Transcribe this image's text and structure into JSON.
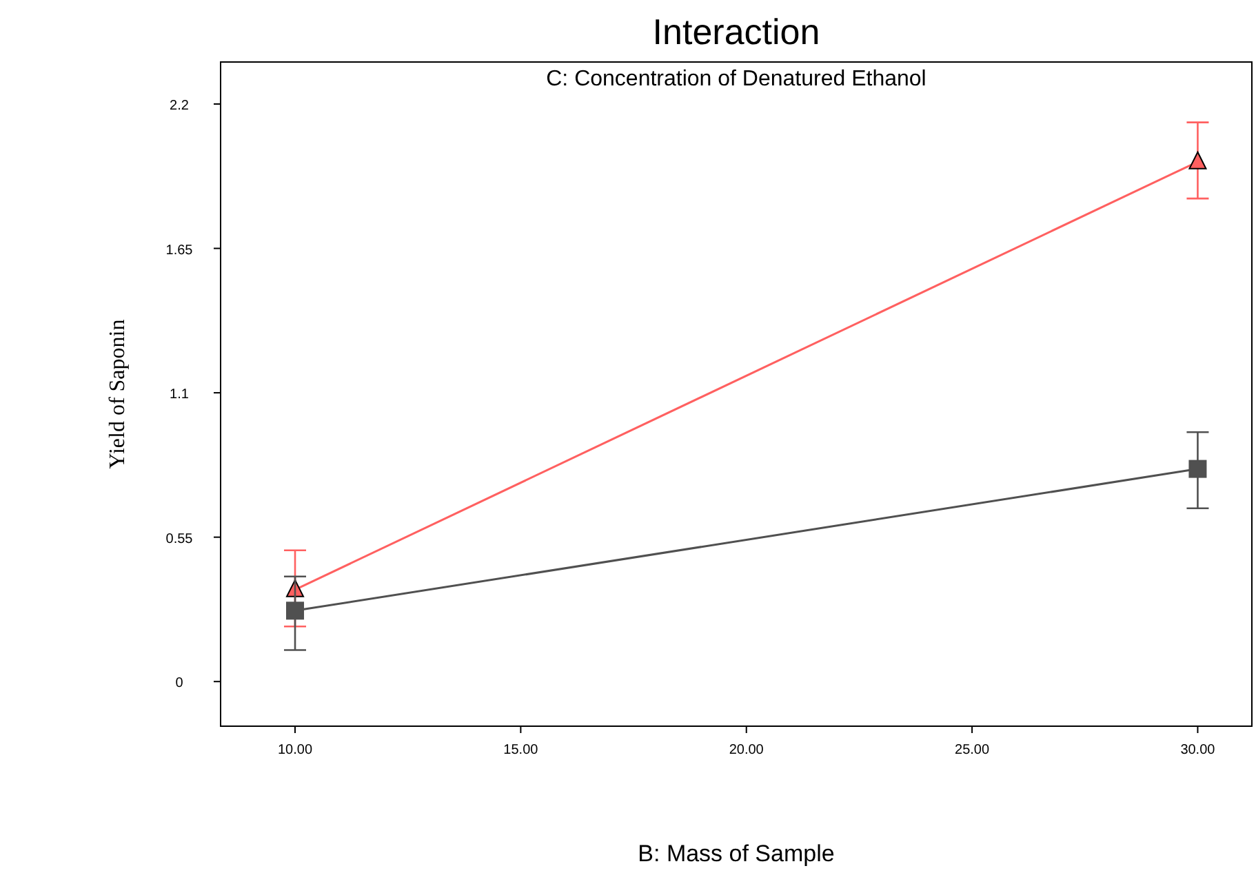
{
  "chart_data": {
    "type": "line",
    "title": "Interaction",
    "subtitle": "C: Concentration of Denatured Ethanol",
    "xlabel": "B: Mass of Sample",
    "ylabel": "Yield of Saponin",
    "x": [
      10,
      30
    ],
    "series": [
      {
        "color": "#ff6060",
        "values": [
          0.35,
          1.98
        ],
        "errors": [
          [
            0.21,
            0.5
          ],
          [
            1.84,
            2.13
          ]
        ],
        "marker": "triangle"
      },
      {
        "color": "#505050",
        "values": [
          0.27,
          0.81
        ],
        "errors": [
          [
            0.12,
            0.4
          ],
          [
            0.66,
            0.95
          ]
        ],
        "marker": "square"
      }
    ],
    "xlim": [
      8.35,
      31.2
    ],
    "ylim": [
      -0.17,
      2.36
    ],
    "xticks": [
      {
        "value": 10,
        "label": "10.00"
      },
      {
        "value": 15,
        "label": "15.00"
      },
      {
        "value": 20,
        "label": "20.00"
      },
      {
        "value": 25,
        "label": "25.00"
      },
      {
        "value": 30,
        "label": "30.00"
      }
    ],
    "yticks": [
      0,
      0.55,
      1.1,
      1.65,
      2.2
    ],
    "grid": false
  }
}
